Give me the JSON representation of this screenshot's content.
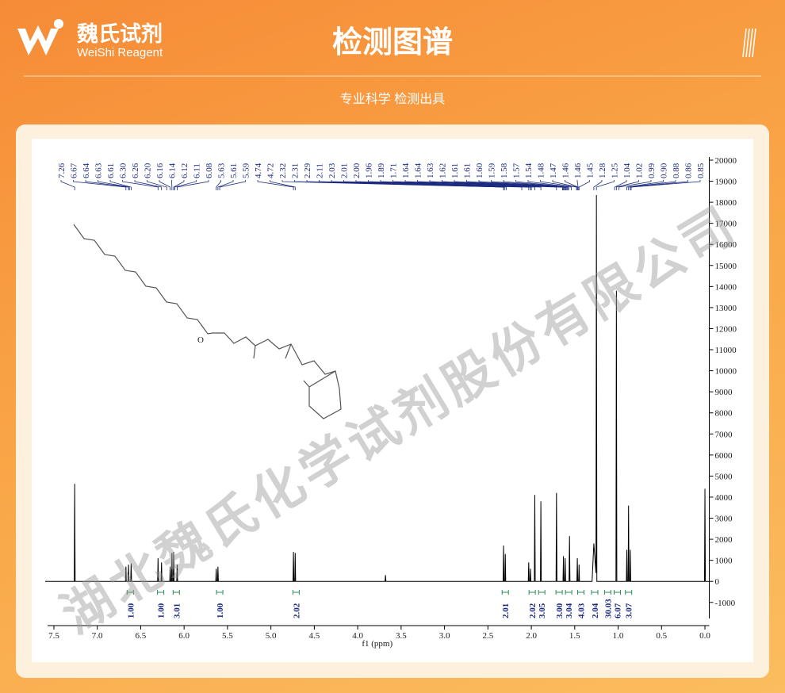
{
  "header": {
    "brand_cn": "魏氏试剂",
    "brand_en": "WeiShi Reagent",
    "title": "检测图谱",
    "subtitle": "专业科学  检测出具",
    "watermark": "湖北魏氏化学试剂股份有限公司"
  },
  "chart_data": {
    "type": "line",
    "xlabel": "f1 (ppm)",
    "xlim": [
      7.6,
      -0.05
    ],
    "xticks": [
      7.5,
      {
        "value": 7,
        "label": "7.0"
      },
      6.5,
      {
        "value": 6,
        "label": "6.0"
      },
      5.5,
      {
        "value": 5,
        "label": "5.0"
      },
      4.5,
      {
        "value": 4,
        "label": "4.0"
      },
      3.5,
      {
        "value": 3,
        "label": "3.0"
      },
      2.5,
      {
        "value": 2,
        "label": "2.0"
      },
      1.5,
      {
        "value": 1,
        "label": "1.0"
      },
      0.5,
      {
        "value": 0,
        "label": "0.0"
      }
    ],
    "ylim": [
      -2100,
      20300
    ],
    "yticks": [
      -1000,
      0,
      1000,
      2000,
      3000,
      4000,
      5000,
      6000,
      7000,
      8000,
      9000,
      10000,
      11000,
      12000,
      13000,
      14000,
      15000,
      16000,
      17000,
      18000,
      19000,
      20000
    ],
    "color": "#000000",
    "x": [
      7.6,
      7.265,
      7.26,
      7.255,
      6.675,
      6.67,
      6.665,
      6.645,
      6.64,
      6.635,
      6.615,
      6.61,
      6.605,
      6.305,
      6.3,
      6.295,
      6.265,
      6.26,
      6.255,
      6.165,
      6.16,
      6.155,
      6.145,
      6.14,
      6.135,
      6.125,
      6.12,
      6.115,
      6.085,
      6.08,
      6.075,
      5.635,
      5.63,
      5.625,
      5.615,
      5.61,
      5.605,
      4.745,
      4.74,
      4.735,
      4.725,
      4.72,
      4.715,
      3.685,
      3.68,
      3.675,
      2.325,
      2.32,
      2.315,
      2.305,
      2.3,
      2.295,
      2.035,
      2.03,
      2.025,
      2.015,
      2.01,
      2.005,
      1.965,
      1.96,
      1.955,
      1.895,
      1.89,
      1.885,
      1.715,
      1.71,
      1.705,
      1.635,
      1.63,
      1.625,
      1.615,
      1.61,
      1.605,
      1.565,
      1.56,
      1.555,
      1.475,
      1.47,
      1.465,
      1.455,
      1.45,
      1.445,
      1.3,
      1.28,
      1.255,
      1.25,
      1.245,
      1.025,
      1.02,
      1.015,
      0.905,
      0.9,
      0.895,
      0.885,
      0.88,
      0.875,
      0.865,
      0.86,
      0.855,
      0.005,
      0,
      -0.005,
      -0.05
    ],
    "values": [
      0,
      0,
      4630,
      0,
      0,
      700,
      0,
      0,
      800,
      0,
      0,
      850,
      0,
      0,
      1100,
      0,
      0,
      900,
      0,
      0,
      700,
      0,
      0,
      1350,
      0,
      0,
      1400,
      0,
      0,
      800,
      0,
      0,
      600,
      0,
      0,
      700,
      0,
      0,
      1400,
      0,
      0,
      1350,
      0,
      0,
      300,
      0,
      0,
      1700,
      0,
      0,
      1300,
      0,
      0,
      900,
      0,
      0,
      600,
      0,
      0,
      4100,
      0,
      0,
      3800,
      0,
      0,
      4200,
      0,
      0,
      1200,
      0,
      0,
      1100,
      0,
      0,
      2150,
      0,
      0,
      1100,
      0,
      0,
      800,
      0,
      0,
      1800,
      400,
      18340,
      0,
      0,
      13800,
      0,
      0,
      1500,
      0,
      0,
      3600,
      0,
      0,
      1500,
      0,
      0,
      4400,
      0,
      0
    ],
    "peak_labels": [
      7.26,
      6.67,
      6.64,
      6.63,
      6.61,
      {
        "value": 6.3,
        "label": "6.30"
      },
      6.26,
      {
        "value": 6.2,
        "label": "6.20"
      },
      6.16,
      6.14,
      6.12,
      6.11,
      6.08,
      5.63,
      5.61,
      5.59,
      4.74,
      4.72,
      2.32,
      2.31,
      2.29,
      2.11,
      2.03,
      2.01,
      {
        "value": 2,
        "label": "2.00"
      },
      1.96,
      1.89,
      1.71,
      1.64,
      1.64,
      1.63,
      1.62,
      1.61,
      1.61,
      {
        "value": 1.6,
        "label": "1.60"
      },
      1.59,
      1.58,
      1.57,
      1.54,
      1.48,
      1.47,
      1.46,
      1.46,
      1.45,
      1.28,
      1.25,
      1.04,
      1.02,
      0.99,
      {
        "value": 0.9,
        "label": "0.90"
      },
      0.88,
      0.86,
      0.85
    ],
    "integrals": {
      "x": [
        6.62,
        6.27,
        6.09,
        5.59,
        4.71,
        2.3,
        1.99,
        1.88,
        1.68,
        1.57,
        1.43,
        1.27,
        1.12,
        1.01,
        0.88
      ],
      "values": [
        1,
        1,
        3.01,
        1,
        2.02,
        2.01,
        2.02,
        3.05,
        3,
        3.04,
        4.03,
        2.04,
        30.03,
        6.07,
        3.07
      ],
      "value_labels": [
        "1.00",
        "1.00",
        "3.01",
        "1.00",
        "2.02",
        "2.01",
        "2.02",
        "3.05",
        "3.00",
        "3.04",
        "4.03",
        "2.04",
        "30.03",
        "6.07",
        "3.07"
      ]
    }
  }
}
